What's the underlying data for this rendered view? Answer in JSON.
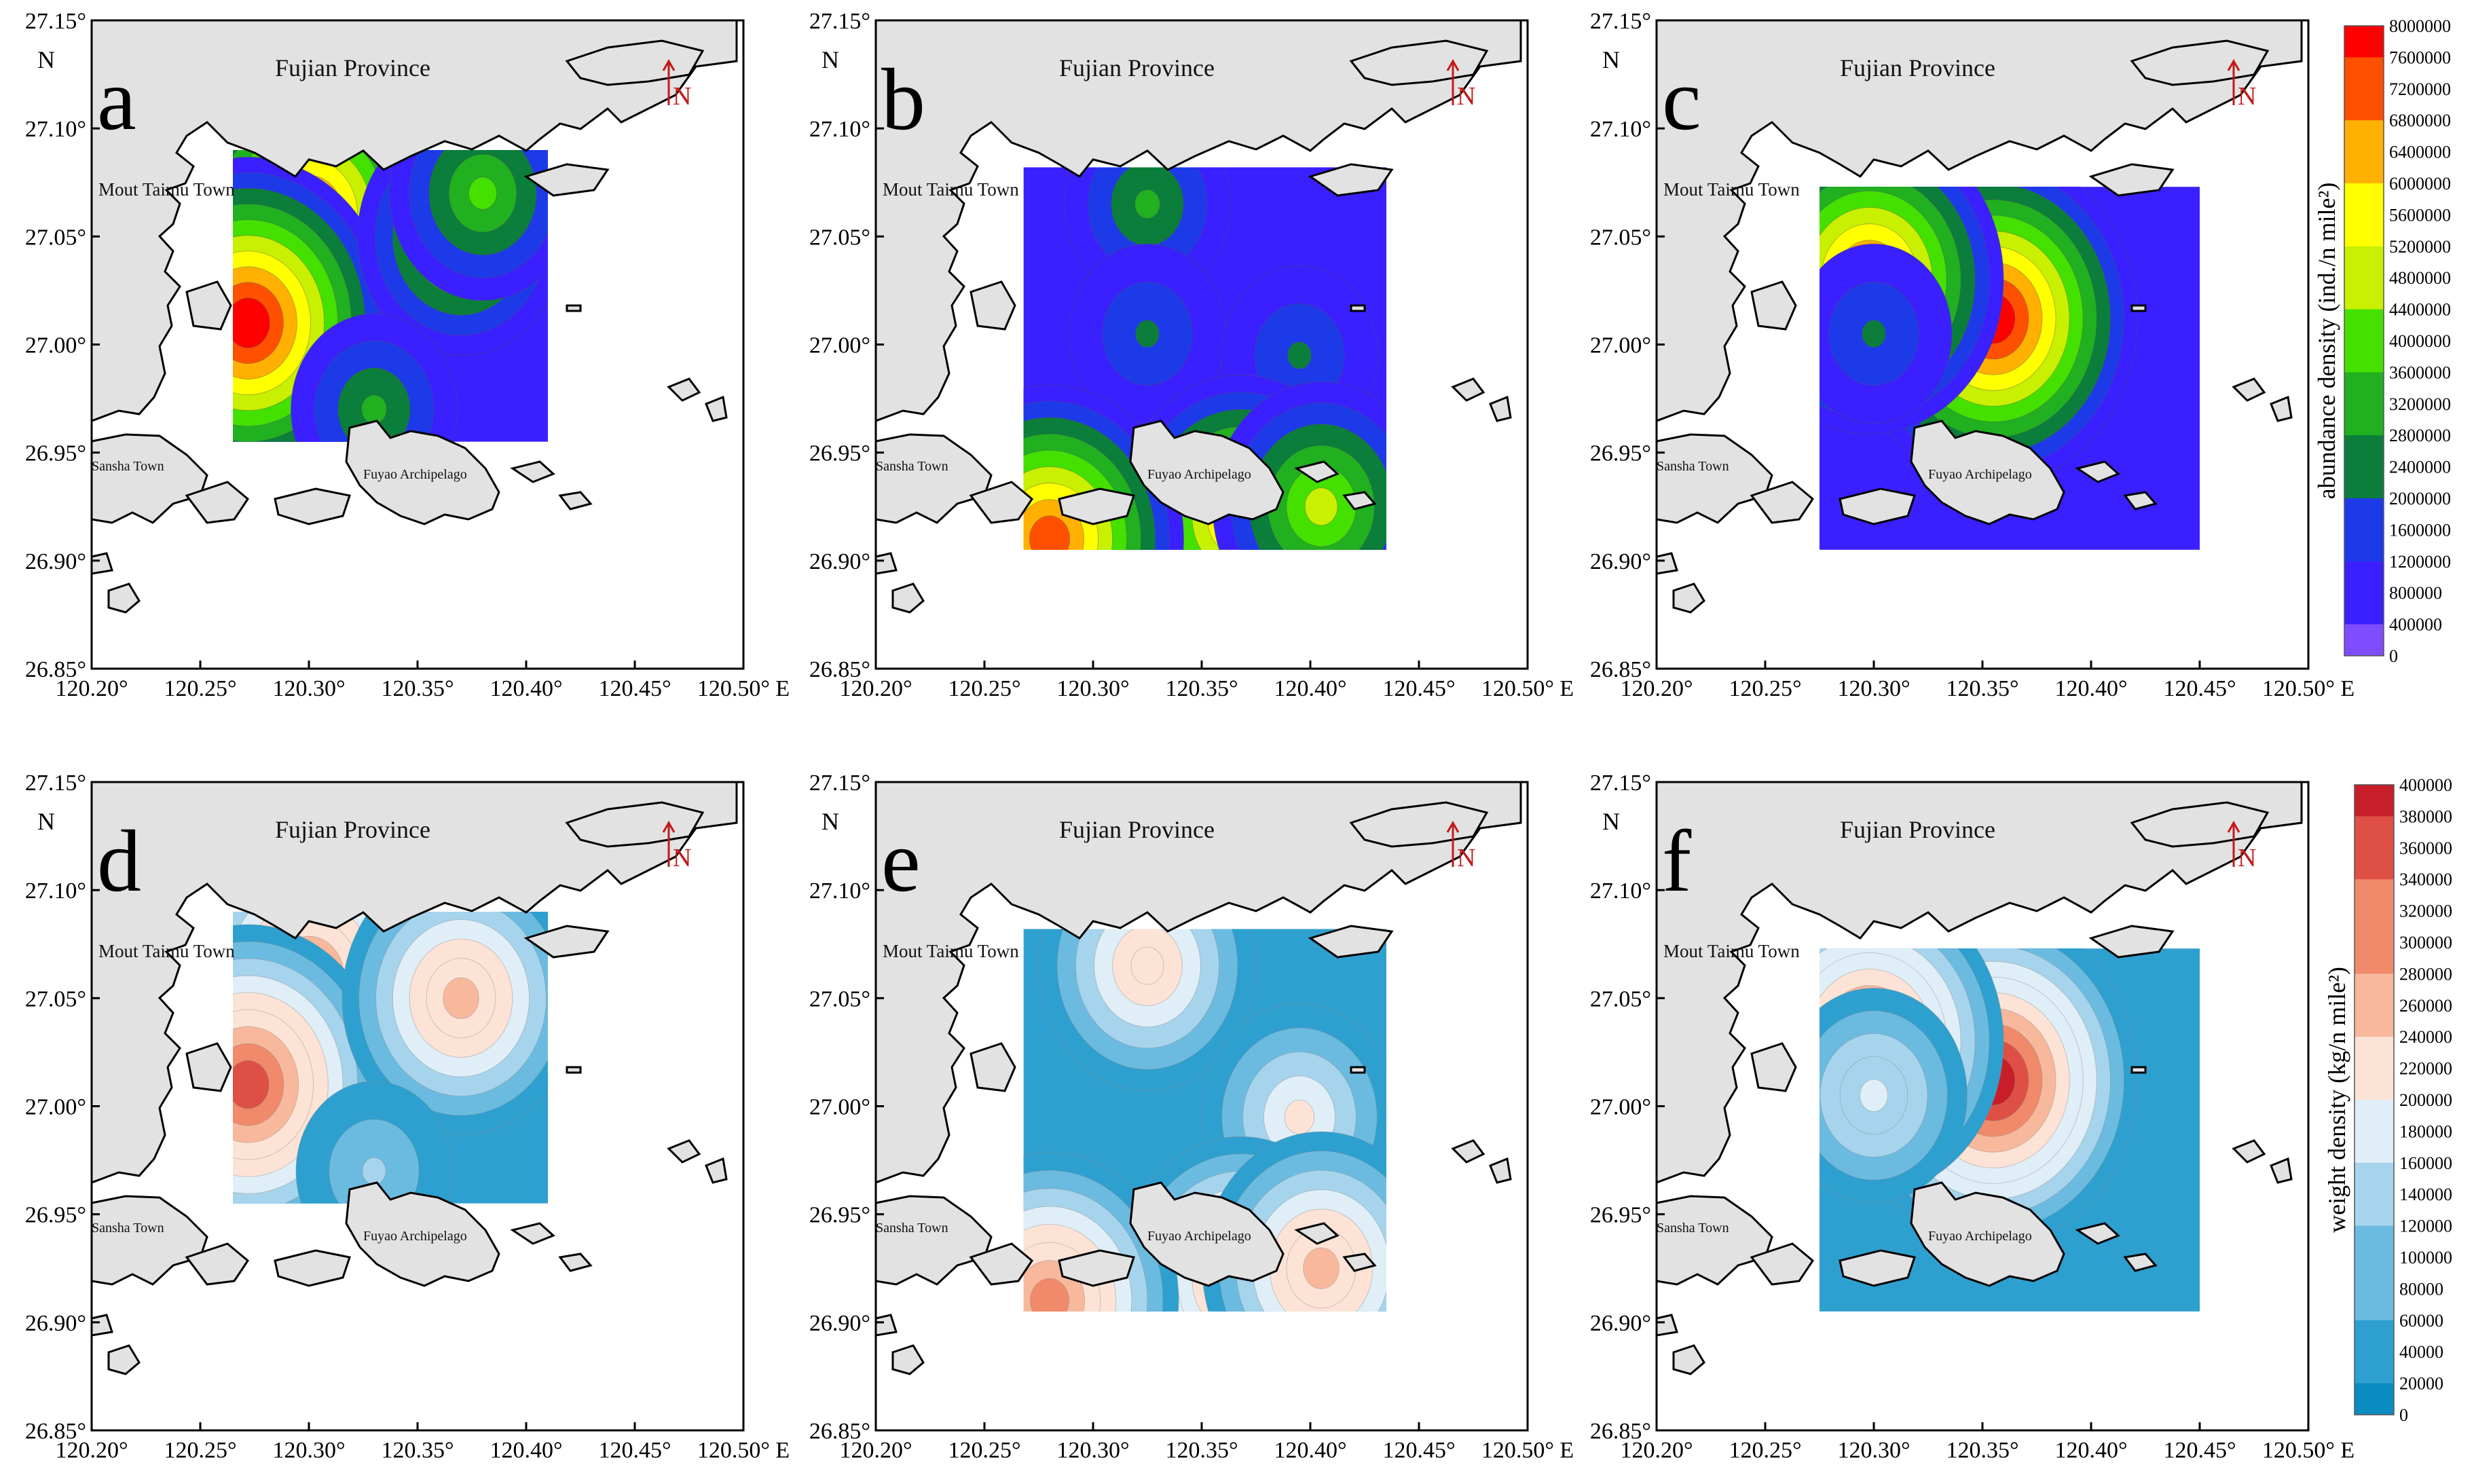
{
  "figure_title": "",
  "axes": {
    "lon_ticks": [
      "120.20°",
      "120.25°",
      "120.30°",
      "120.35°",
      "120.40°",
      "120.45°",
      "120.50°"
    ],
    "lat_ticks": [
      "27.15°",
      "27.10°",
      "27.05°",
      "27.00°",
      "26.95°",
      "26.90°",
      "26.85°"
    ],
    "lon_suffix": "E",
    "lat_label": "N",
    "lon_range": [
      120.2,
      120.5
    ],
    "lat_range": [
      26.85,
      27.15
    ]
  },
  "place_labels": {
    "province": "Fujian Province",
    "taimu": "Mout Taimu Town",
    "sansha": "Sansha Town",
    "fuyao": "Fuyao Archipelago",
    "north": "N"
  },
  "panels": [
    {
      "letter": "a",
      "scheme": "rainbow",
      "area": {
        "lon": [
          120.265,
          120.41
        ],
        "lat": [
          26.955,
          27.09
        ]
      },
      "hotspots": [
        {
          "lon": 120.325,
          "lat": 27.06,
          "level": 0.8
        },
        {
          "lon": 120.3,
          "lat": 27.06,
          "level": 0.85
        },
        {
          "lon": 120.272,
          "lat": 27.01,
          "level": 0.95
        },
        {
          "lon": 120.37,
          "lat": 27.05,
          "level": 0.55
        },
        {
          "lon": 120.38,
          "lat": 27.07,
          "level": 0.45
        },
        {
          "lon": 120.33,
          "lat": 26.97,
          "level": 0.35
        }
      ]
    },
    {
      "letter": "b",
      "scheme": "rainbow",
      "area": {
        "lon": [
          120.268,
          120.435
        ],
        "lat": [
          26.905,
          27.082
        ]
      },
      "hotspots": [
        {
          "lon": 120.325,
          "lat": 27.065,
          "level": 0.35
        },
        {
          "lon": 120.325,
          "lat": 27.005,
          "level": 0.3
        },
        {
          "lon": 120.395,
          "lat": 26.995,
          "level": 0.3
        },
        {
          "lon": 120.368,
          "lat": 26.92,
          "level": 0.75
        },
        {
          "lon": 120.405,
          "lat": 26.925,
          "level": 0.6
        },
        {
          "lon": 120.28,
          "lat": 26.91,
          "level": 0.85
        }
      ]
    },
    {
      "letter": "c",
      "scheme": "rainbow",
      "area": {
        "lon": [
          120.275,
          120.45
        ],
        "lat": [
          26.905,
          27.073
        ]
      },
      "hotspots": [
        {
          "lon": 120.333,
          "lat": 27.05,
          "level": 0.9
        },
        {
          "lon": 120.355,
          "lat": 27.012,
          "level": 0.95
        },
        {
          "lon": 120.298,
          "lat": 27.03,
          "level": 0.85
        },
        {
          "lon": 120.3,
          "lat": 27.005,
          "level": 0.3
        }
      ]
    },
    {
      "letter": "d",
      "scheme": "diverging",
      "area": {
        "lon": [
          120.265,
          120.41
        ],
        "lat": [
          26.955,
          27.09
        ]
      },
      "hotspots": [
        {
          "lon": 120.325,
          "lat": 27.06,
          "level": 0.8
        },
        {
          "lon": 120.3,
          "lat": 27.06,
          "level": 0.8
        },
        {
          "lon": 120.272,
          "lat": 27.01,
          "level": 0.9
        },
        {
          "lon": 120.37,
          "lat": 27.05,
          "level": 0.7
        },
        {
          "lon": 120.33,
          "lat": 26.97,
          "level": 0.3
        }
      ]
    },
    {
      "letter": "e",
      "scheme": "diverging",
      "area": {
        "lon": [
          120.268,
          120.435
        ],
        "lat": [
          26.905,
          27.082
        ]
      },
      "hotspots": [
        {
          "lon": 120.325,
          "lat": 27.065,
          "level": 0.6
        },
        {
          "lon": 120.395,
          "lat": 26.995,
          "level": 0.5
        },
        {
          "lon": 120.368,
          "lat": 26.92,
          "level": 0.75
        },
        {
          "lon": 120.405,
          "lat": 26.925,
          "level": 0.7
        },
        {
          "lon": 120.28,
          "lat": 26.91,
          "level": 0.8
        }
      ]
    },
    {
      "letter": "f",
      "scheme": "diverging",
      "area": {
        "lon": [
          120.275,
          120.45
        ],
        "lat": [
          26.905,
          27.073
        ]
      },
      "hotspots": [
        {
          "lon": 120.333,
          "lat": 27.05,
          "level": 0.95
        },
        {
          "lon": 120.355,
          "lat": 27.012,
          "level": 0.95
        },
        {
          "lon": 120.298,
          "lat": 27.03,
          "level": 0.85
        },
        {
          "lon": 120.3,
          "lat": 27.005,
          "level": 0.45
        }
      ]
    }
  ],
  "colorbars": [
    {
      "label": "abundance density (ind./n mile²)",
      "scheme": "rainbow",
      "ticks": [
        "8000000",
        "7600000",
        "7200000",
        "6800000",
        "6400000",
        "6000000",
        "5600000",
        "5200000",
        "4800000",
        "4400000",
        "4000000",
        "3600000",
        "3200000",
        "2800000",
        "2400000",
        "2000000",
        "1600000",
        "1200000",
        "800000",
        "400000",
        "0"
      ]
    },
    {
      "label": "weight density (kg/n mile²)",
      "scheme": "diverging",
      "ticks": [
        "400000",
        "380000",
        "360000",
        "340000",
        "320000",
        "300000",
        "280000",
        "260000",
        "240000",
        "220000",
        "200000",
        "180000",
        "160000",
        "140000",
        "120000",
        "100000",
        "80000",
        "60000",
        "40000",
        "20000",
        "0"
      ]
    }
  ],
  "colors": {
    "land": "#e2e2e2",
    "coast": "#000000",
    "sea": "#ffffff",
    "north_arrow": "#c41a1a",
    "rainbow": [
      "#7f4dff",
      "#3a1fff",
      "#1d3ae8",
      "#0a7e3a",
      "#20b020",
      "#44e000",
      "#c8f000",
      "#ffff00",
      "#ffb000",
      "#ff5000",
      "#ff0000"
    ],
    "diverging": [
      "#0a8cc0",
      "#2ea0d0",
      "#6bbbe0",
      "#a6d4ec",
      "#dfeef7",
      "#fde3d6",
      "#f8b89c",
      "#f08a6a",
      "#de4f45",
      "#c81e2a"
    ]
  }
}
